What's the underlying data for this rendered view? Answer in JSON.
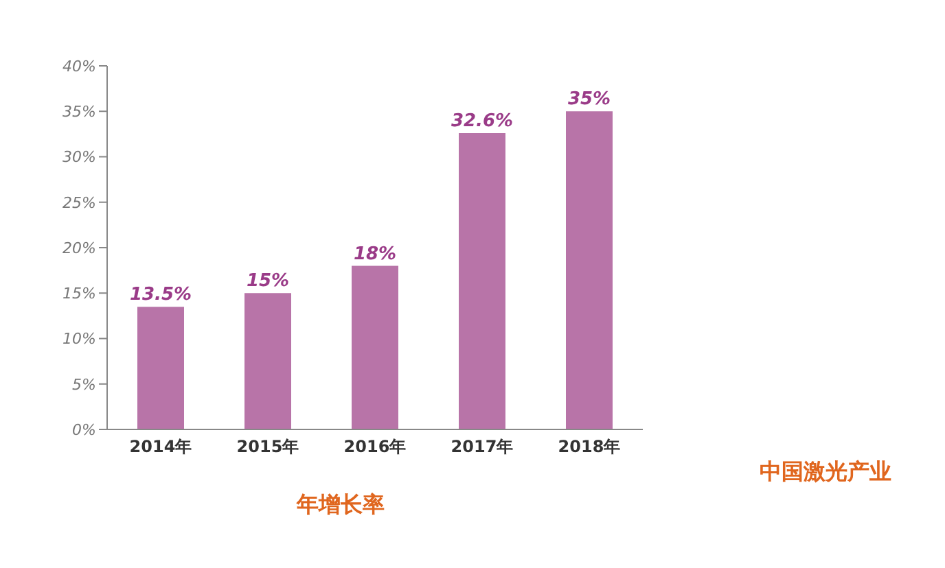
{
  "chart_data": {
    "type": "bar",
    "title": "年增长率",
    "annotations": [
      "中国激光产业"
    ],
    "categories": [
      "2014年",
      "2015年",
      "2016年",
      "2017年",
      "2018年"
    ],
    "values": [
      13.5,
      15,
      18,
      32.6,
      35
    ],
    "value_labels": [
      "13.5%",
      "15%",
      "18%",
      "32.6%",
      "35%"
    ],
    "color": "#b874a8",
    "ylim": [
      0,
      40
    ],
    "yticks": [
      {
        "value": 0,
        "label": "0%"
      },
      {
        "value": 5,
        "label": "5%"
      },
      {
        "value": 10,
        "label": "10%"
      },
      {
        "value": 15,
        "label": "15%"
      },
      {
        "value": 20,
        "label": "20%"
      },
      {
        "value": 25,
        "label": "25%"
      },
      {
        "value": 30,
        "label": "30%"
      },
      {
        "value": 35,
        "label": "35%"
      },
      {
        "value": 40,
        "label": "40%"
      }
    ],
    "grid": false,
    "legend": false
  }
}
